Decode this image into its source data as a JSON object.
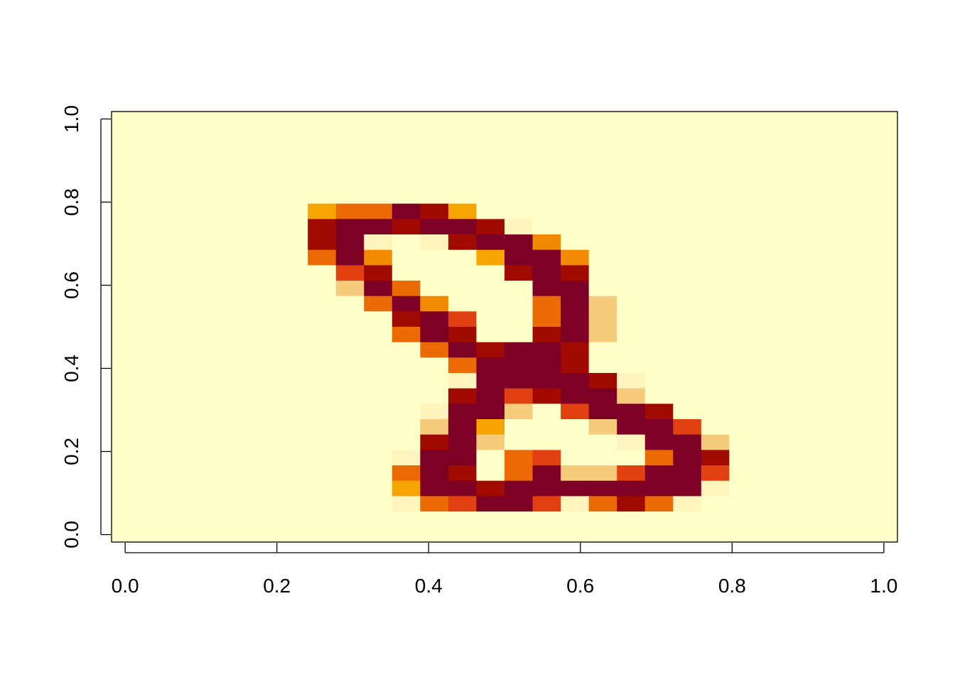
{
  "chart_data": {
    "type": "heatmap",
    "title": "",
    "xlabel": "",
    "ylabel": "",
    "xlim": [
      -0.0179,
      1.0179
    ],
    "ylim": [
      -0.0179,
      1.0179
    ],
    "x_ticks": [
      "0.0",
      "0.2",
      "0.4",
      "0.6",
      "0.8",
      "1.0"
    ],
    "y_ticks": [
      "0.0",
      "0.2",
      "0.4",
      "0.6",
      "0.8",
      "1.0"
    ],
    "grid": false,
    "legend": "none",
    "ncol": 28,
    "nrow": 28,
    "row_order": "top-to-bottom",
    "value_range": [
      0,
      255
    ],
    "colors": [
      "#FFFFC8",
      "#FFF3BE",
      "#FBE0A0",
      "#F6CB7C",
      "#F5B641",
      "#F5A400",
      "#F28A00",
      "#EB6A06",
      "#E14111",
      "#C72A05",
      "#A00A00",
      "#7D0025"
    ],
    "values": [
      [
        0,
        0,
        0,
        0,
        0,
        0,
        0,
        0,
        0,
        0,
        0,
        0,
        0,
        0,
        0,
        0,
        0,
        0,
        0,
        0,
        0,
        0,
        0,
        0,
        0,
        0,
        0,
        0
      ],
      [
        0,
        0,
        0,
        0,
        0,
        0,
        0,
        0,
        0,
        0,
        0,
        0,
        0,
        0,
        0,
        0,
        0,
        0,
        0,
        0,
        0,
        0,
        0,
        0,
        0,
        0,
        0,
        0
      ],
      [
        0,
        0,
        0,
        0,
        0,
        0,
        0,
        0,
        0,
        0,
        0,
        0,
        0,
        0,
        0,
        0,
        0,
        0,
        0,
        0,
        0,
        0,
        0,
        0,
        0,
        0,
        0,
        0
      ],
      [
        0,
        0,
        0,
        0,
        0,
        0,
        0,
        0,
        0,
        0,
        0,
        0,
        0,
        0,
        0,
        0,
        0,
        0,
        0,
        0,
        0,
        0,
        0,
        0,
        0,
        0,
        0,
        0
      ],
      [
        0,
        0,
        0,
        0,
        0,
        0,
        0,
        0,
        0,
        0,
        0,
        0,
        0,
        0,
        0,
        0,
        0,
        0,
        0,
        0,
        0,
        0,
        0,
        0,
        0,
        0,
        0,
        0
      ],
      [
        0,
        0,
        0,
        0,
        0,
        0,
        0,
        0,
        0,
        0,
        0,
        0,
        0,
        0,
        0,
        0,
        0,
        0,
        0,
        0,
        0,
        0,
        0,
        0,
        0,
        0,
        0,
        0
      ],
      [
        0,
        0,
        0,
        0,
        0,
        0,
        0,
        110,
        155,
        155,
        255,
        220,
        110,
        0,
        0,
        0,
        0,
        0,
        0,
        0,
        0,
        0,
        0,
        0,
        0,
        0,
        0,
        0
      ],
      [
        0,
        0,
        0,
        0,
        0,
        0,
        0,
        220,
        255,
        240,
        230,
        255,
        255,
        220,
        40,
        0,
        0,
        0,
        0,
        0,
        0,
        0,
        0,
        0,
        0,
        0,
        0,
        0
      ],
      [
        0,
        0,
        0,
        0,
        0,
        0,
        0,
        220,
        255,
        40,
        0,
        40,
        220,
        255,
        255,
        130,
        0,
        0,
        0,
        0,
        0,
        0,
        0,
        0,
        0,
        0,
        0,
        0
      ],
      [
        0,
        0,
        0,
        0,
        0,
        0,
        0,
        155,
        255,
        130,
        0,
        0,
        0,
        110,
        255,
        255,
        130,
        0,
        0,
        0,
        0,
        0,
        0,
        0,
        0,
        0,
        0,
        0
      ],
      [
        0,
        0,
        0,
        0,
        0,
        0,
        0,
        0,
        185,
        220,
        0,
        0,
        0,
        0,
        220,
        255,
        230,
        0,
        0,
        0,
        0,
        0,
        0,
        0,
        0,
        0,
        0,
        0
      ],
      [
        0,
        0,
        0,
        0,
        0,
        0,
        0,
        0,
        75,
        255,
        155,
        0,
        0,
        0,
        0,
        255,
        240,
        20,
        0,
        0,
        0,
        0,
        0,
        0,
        0,
        0,
        0,
        0
      ],
      [
        0,
        0,
        0,
        0,
        0,
        0,
        0,
        0,
        0,
        155,
        255,
        130,
        0,
        0,
        0,
        155,
        255,
        75,
        0,
        0,
        0,
        0,
        0,
        0,
        0,
        0,
        0,
        0
      ],
      [
        0,
        0,
        0,
        0,
        0,
        0,
        0,
        0,
        0,
        0,
        220,
        255,
        185,
        0,
        0,
        155,
        255,
        75,
        0,
        0,
        0,
        0,
        0,
        0,
        0,
        0,
        0,
        0
      ],
      [
        0,
        0,
        0,
        0,
        0,
        0,
        0,
        0,
        0,
        0,
        155,
        255,
        220,
        0,
        0,
        220,
        255,
        75,
        0,
        0,
        0,
        0,
        0,
        0,
        0,
        0,
        0,
        0
      ],
      [
        0,
        0,
        0,
        0,
        0,
        0,
        0,
        0,
        0,
        0,
        0,
        155,
        255,
        220,
        240,
        255,
        230,
        0,
        0,
        0,
        0,
        0,
        0,
        0,
        0,
        0,
        0,
        0
      ],
      [
        0,
        0,
        0,
        0,
        0,
        0,
        0,
        0,
        0,
        0,
        0,
        0,
        155,
        255,
        255,
        255,
        230,
        0,
        0,
        0,
        0,
        0,
        0,
        0,
        0,
        0,
        0,
        0
      ],
      [
        0,
        0,
        0,
        0,
        0,
        0,
        0,
        0,
        0,
        0,
        0,
        0,
        40,
        255,
        255,
        255,
        255,
        220,
        40,
        0,
        0,
        0,
        0,
        0,
        0,
        0,
        0,
        0
      ],
      [
        0,
        0,
        0,
        0,
        0,
        0,
        0,
        0,
        0,
        0,
        0,
        0,
        220,
        255,
        185,
        230,
        255,
        240,
        75,
        0,
        0,
        0,
        0,
        0,
        0,
        0,
        0,
        0
      ],
      [
        0,
        0,
        0,
        0,
        0,
        0,
        0,
        0,
        0,
        0,
        0,
        40,
        255,
        255,
        75,
        0,
        185,
        255,
        255,
        220,
        0,
        0,
        0,
        0,
        0,
        0,
        0,
        0
      ],
      [
        0,
        0,
        0,
        0,
        0,
        0,
        0,
        0,
        0,
        0,
        0,
        75,
        255,
        110,
        0,
        0,
        0,
        75,
        255,
        255,
        185,
        20,
        0,
        0,
        0,
        0,
        0,
        0
      ],
      [
        0,
        0,
        0,
        0,
        0,
        0,
        0,
        0,
        0,
        0,
        0,
        220,
        255,
        75,
        0,
        0,
        0,
        0,
        40,
        255,
        255,
        75,
        0,
        0,
        0,
        0,
        0,
        0
      ],
      [
        0,
        0,
        0,
        0,
        0,
        0,
        0,
        0,
        0,
        0,
        40,
        255,
        255,
        20,
        155,
        185,
        0,
        0,
        0,
        155,
        255,
        220,
        0,
        0,
        0,
        0,
        0,
        0
      ],
      [
        0,
        0,
        0,
        0,
        0,
        0,
        0,
        0,
        0,
        0,
        155,
        255,
        230,
        0,
        155,
        255,
        75,
        75,
        185,
        255,
        255,
        185,
        0,
        0,
        0,
        0,
        0,
        0
      ],
      [
        0,
        0,
        0,
        0,
        0,
        0,
        0,
        0,
        0,
        0,
        110,
        240,
        255,
        230,
        240,
        255,
        255,
        255,
        255,
        255,
        255,
        40,
        0,
        0,
        0,
        0,
        0,
        0
      ],
      [
        0,
        0,
        0,
        0,
        0,
        0,
        0,
        0,
        0,
        0,
        40,
        155,
        185,
        255,
        255,
        185,
        40,
        155,
        220,
        155,
        40,
        0,
        0,
        0,
        0,
        0,
        0,
        0
      ],
      [
        0,
        0,
        0,
        0,
        0,
        0,
        0,
        0,
        0,
        0,
        0,
        0,
        0,
        0,
        0,
        0,
        0,
        0,
        0,
        0,
        0,
        0,
        0,
        0,
        0,
        0,
        0,
        0
      ],
      [
        0,
        0,
        0,
        0,
        0,
        0,
        0,
        0,
        0,
        0,
        0,
        0,
        0,
        0,
        0,
        0,
        0,
        0,
        0,
        0,
        0,
        0,
        0,
        0,
        0,
        0,
        0,
        0
      ]
    ]
  }
}
